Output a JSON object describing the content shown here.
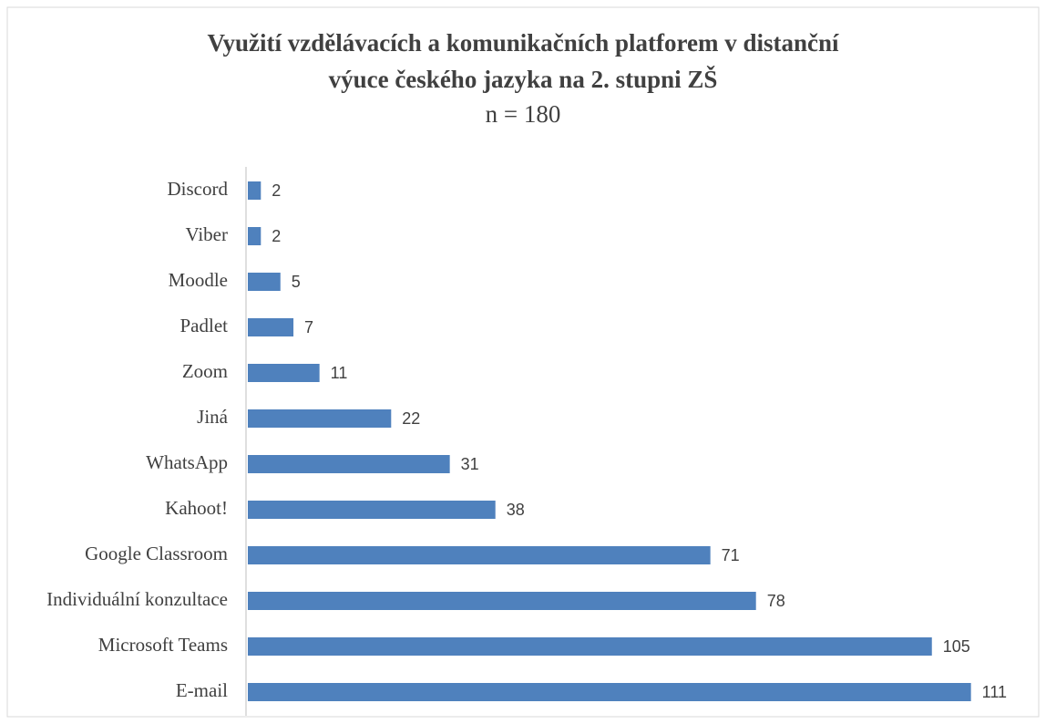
{
  "chart_data": {
    "type": "barh",
    "title": [
      "Využití vzdělávacích a komunikačních platforem v distanční",
      "výuce českého jazyka na 2. stupni ZŠ"
    ],
    "subtitle": "n = 180",
    "categories": [
      "Discord",
      "Viber",
      "Moodle",
      "Padlet",
      "Zoom",
      "Jiná",
      "WhatsApp",
      "Kahoot!",
      "Google Classroom",
      "Individuální konzultace",
      "Microsoft Teams",
      "E-mail"
    ],
    "values": [
      2,
      2,
      5,
      7,
      11,
      22,
      31,
      38,
      71,
      78,
      105,
      111
    ],
    "color": "#4f81bd",
    "xlim": [
      0,
      120
    ]
  }
}
